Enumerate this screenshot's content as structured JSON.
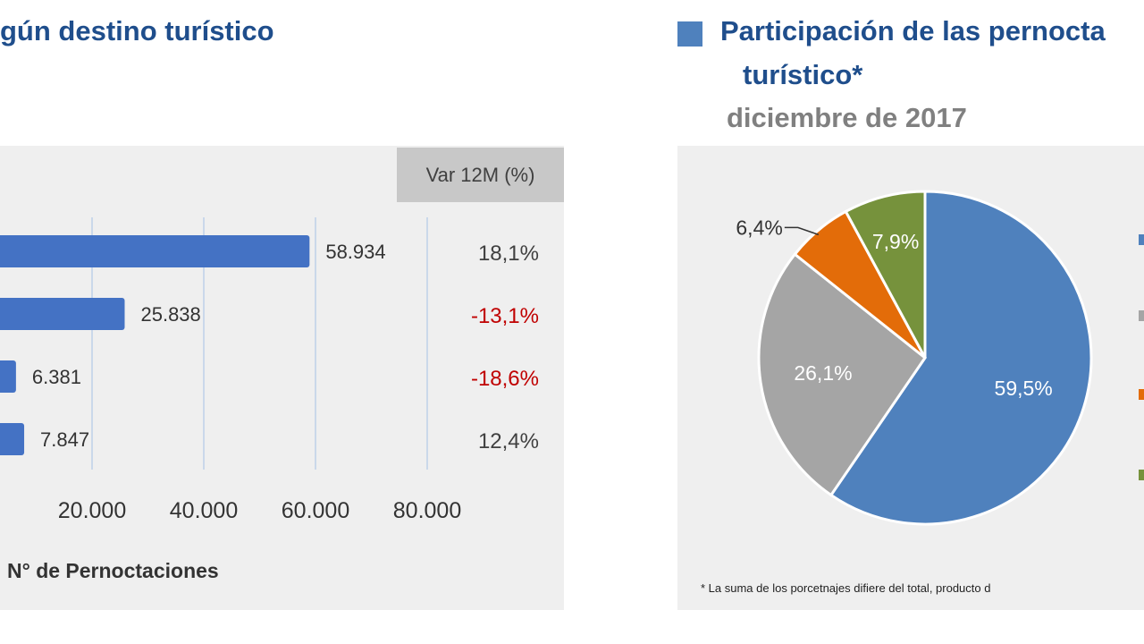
{
  "left": {
    "title": "gún destino turístico",
    "var_header": "Var 12M (%)"
  },
  "right": {
    "title_line1": "Participación de las pernocta",
    "title_line2": "turístico*",
    "subtitle": "diciembre de 2017",
    "footnote": "* La suma de los porcetnajes difiere del total, producto d"
  },
  "chart_data": [
    {
      "type": "bar",
      "orientation": "horizontal",
      "values": [
        58934,
        25838,
        6381,
        7847
      ],
      "value_labels": [
        "58.934",
        "25.838",
        "6.381",
        "7.847"
      ],
      "var_12m": [
        "18,1%",
        "-13,1%",
        "-18,6%",
        "12,4%"
      ],
      "xlabel": "N° de Pernoctaciones",
      "xticks": [
        20000,
        40000,
        60000,
        80000
      ],
      "xtick_labels": [
        "20.000",
        "40.000",
        "60.000",
        "80.000"
      ],
      "xlim": [
        0,
        80000
      ],
      "grid": true,
      "colors": {
        "bar": "#4472c4",
        "negative": "#c00000",
        "positive": "#404040"
      }
    },
    {
      "type": "pie",
      "values": [
        59.5,
        26.1,
        6.4,
        7.9
      ],
      "labels": [
        "59,5%",
        "26,1%",
        "6,4%",
        "7,9%"
      ],
      "colors": [
        "#4f81bd",
        "#a5a5a5",
        "#e36c09",
        "#76923c"
      ]
    }
  ]
}
